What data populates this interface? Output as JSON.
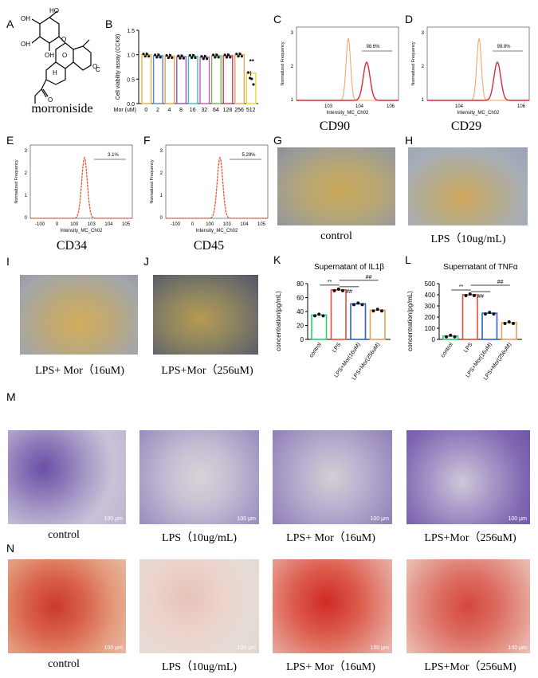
{
  "panel_letters": [
    "A",
    "B",
    "C",
    "D",
    "E",
    "F",
    "G",
    "H",
    "I",
    "J",
    "K",
    "L",
    "M",
    "N"
  ],
  "structure": {
    "name": "morroniside",
    "atom_labels": {
      "HO": "HO",
      "OH": "OH",
      "O": "O",
      "C": "C",
      "H": "H"
    }
  },
  "cck8": {
    "ylabel": "Cell viability assay (CCK8)",
    "xprefix": "Mor (uM)",
    "categories": [
      "0",
      "2",
      "4",
      "8",
      "16",
      "32",
      "64",
      "128",
      "256",
      "512"
    ],
    "yticks": [
      "0.0",
      "0.5",
      "1.0",
      "1.5"
    ],
    "significance": "**"
  },
  "flow": {
    "xlabel": "Intensity_MC_Ch02",
    "ylabel": "Normalized Frequency",
    "panels": [
      {
        "marker": "CD90",
        "percent": "98.6%",
        "ticks": [
          "10^3",
          "10^4",
          "10^6"
        ],
        "yticks": [
          "3",
          "2",
          "1"
        ]
      },
      {
        "marker": "CD29",
        "percent": "99.8%",
        "ticks": [
          "10^4",
          "10^6"
        ],
        "yticks": [
          "3",
          "2",
          "1"
        ]
      },
      {
        "marker": "CD34",
        "percent": "3.1%",
        "ticks": [
          "-100",
          "0",
          "100",
          "10^3",
          "10^4",
          "10^5"
        ],
        "yticks": [
          "3",
          "2",
          "1",
          "0"
        ]
      },
      {
        "marker": "CD45",
        "percent": "5.29%",
        "ticks": [
          "-100",
          "0",
          "100",
          "10^3",
          "10^4",
          "10^5"
        ],
        "yticks": [
          "3",
          "2",
          "1",
          "0"
        ]
      }
    ]
  },
  "captions": {
    "G": "control",
    "H": "LPS（10ug/mL)",
    "I": "LPS+ Mor（16uM)",
    "J": "LPS+Mor（256uM)",
    "M": [
      "control",
      "LPS（10ug/mL)",
      "LPS+ Mor（16uM)",
      "LPS+Mor（256uM)"
    ],
    "N": [
      "control",
      "LPS（10ug/mL)",
      "LPS+ Mor（16uM)",
      "LPS+Mor（256uM)"
    ]
  },
  "scale_bar": "100 μm",
  "chart_data": [
    {
      "type": "bar",
      "title": "",
      "categories": [
        "0",
        "2",
        "4",
        "8",
        "16",
        "32",
        "64",
        "128",
        "256",
        "512"
      ],
      "values": [
        1.0,
        0.98,
        0.97,
        0.96,
        0.97,
        0.95,
        0.98,
        0.98,
        1.0,
        0.62
      ],
      "xlabel": "Mor (uM)",
      "ylabel": "Cell viability assay (CCK8)",
      "ylim": [
        0,
        1.5
      ],
      "colors": [
        "#f2b134",
        "#4a86d9",
        "#e8a13c",
        "#9c4fc4",
        "#3fbfb2",
        "#d84fb6",
        "#6fbf50",
        "#c63b5a",
        "#e9a060",
        "#e6d832"
      ]
    },
    {
      "type": "bar",
      "title": "Supernatant of IL1β",
      "categories": [
        "control",
        "LPS",
        "LPS+Mor(16uM)",
        "LPS+Mor(256uM)"
      ],
      "values": [
        35,
        71,
        51,
        42
      ],
      "ylabel": "concentration(pg/mL)",
      "ylim": [
        0,
        80
      ],
      "yticks": [
        "0",
        "20",
        "40",
        "60",
        "80"
      ],
      "colors": [
        "#2ecc71",
        "#e74c3c",
        "#2c5fd6",
        "#e6a255"
      ],
      "annotations": [
        "**",
        "##",
        "##"
      ]
    },
    {
      "type": "bar",
      "title": "Supernatant of TNFα",
      "categories": [
        "control",
        "LPS",
        "LPS+Mor(16uM)",
        "LPS+Mor(256uM)"
      ],
      "values": [
        30,
        400,
        235,
        150
      ],
      "ylabel": "concentration(pg/mL)",
      "ylim": [
        0,
        500
      ],
      "yticks": [
        "0",
        "100",
        "200",
        "300",
        "400",
        "500"
      ],
      "colors": [
        "#2ecc71",
        "#e74c3c",
        "#2c5fd6",
        "#e6a255"
      ],
      "annotations": [
        "**",
        "##",
        "##"
      ]
    }
  ]
}
